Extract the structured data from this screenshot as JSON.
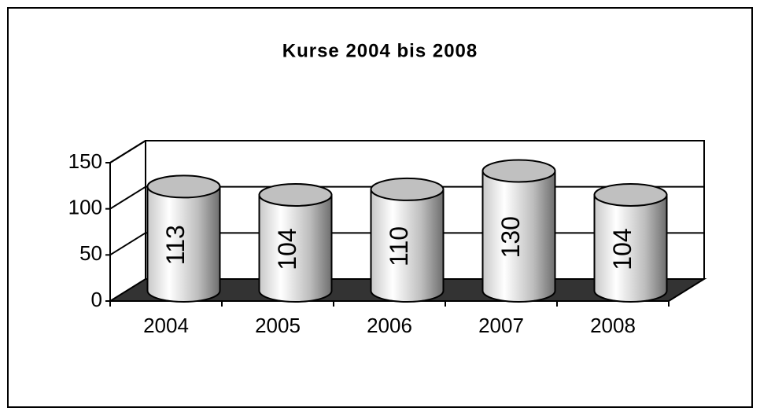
{
  "chart_data": {
    "type": "cylinder",
    "title": "Kurse 2004 bis 2008",
    "categories": [
      "2004",
      "2005",
      "2006",
      "2007",
      "2008"
    ],
    "values": [
      113,
      104,
      110,
      130,
      104
    ],
    "ylim": [
      0,
      150
    ],
    "yticks": [
      0,
      50,
      100,
      150
    ],
    "grid": true
  }
}
